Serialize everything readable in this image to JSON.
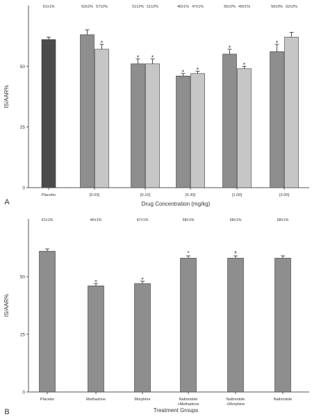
{
  "panels": [
    {
      "letter": "A",
      "xlabel": "Drug Concentration (mg/kg)",
      "ylabel": "IS/AAR%"
    },
    {
      "letter": "B",
      "xlabel": "Treatment Groups",
      "ylabel": "IS/AAR%"
    }
  ],
  "colors": {
    "placebo_dark": "#4b4b4b",
    "medium_grey": "#8e8e8e",
    "light_grey": "#c6c6c6",
    "axis": "#555555",
    "text": "#333333"
  },
  "chart_data": [
    {
      "type": "bar",
      "panel": "A",
      "xlabel": "Drug Concentration (mg/kg)",
      "ylabel": "IS/AAR%",
      "ylim": [
        0,
        75
      ],
      "yticks": [
        0,
        25,
        50
      ],
      "grid": false,
      "groups": [
        {
          "category": "Placebo",
          "bars": [
            {
              "value": 61,
              "error": 1,
              "color": "#4b4b4b",
              "label": "61±1%",
              "marker": ""
            }
          ]
        },
        {
          "category": "[0.03]",
          "bars": [
            {
              "value": 63,
              "error": 2,
              "color": "#8e8e8e",
              "label": "63±2%",
              "marker": ""
            },
            {
              "value": 57,
              "error": 2,
              "color": "#c6c6c6",
              "label": "57±2%",
              "marker": "*"
            }
          ]
        },
        {
          "category": "[0.10]",
          "bars": [
            {
              "value": 51,
              "error": 2,
              "color": "#8e8e8e",
              "label": "51±2%",
              "marker": "*"
            },
            {
              "value": 51,
              "error": 2,
              "color": "#c6c6c6",
              "label": "51±2%",
              "marker": "*"
            }
          ]
        },
        {
          "category": "[0.30]",
          "bars": [
            {
              "value": 46,
              "error": 1,
              "color": "#8e8e8e",
              "label": "46±1%",
              "marker": "*"
            },
            {
              "value": 47,
              "error": 1,
              "color": "#c6c6c6",
              "label": "47±1%",
              "marker": "*"
            }
          ]
        },
        {
          "category": "[1.00]",
          "bars": [
            {
              "value": 55,
              "error": 2,
              "color": "#8e8e8e",
              "label": "55±2%",
              "marker": "*"
            },
            {
              "value": 49,
              "error": 1,
              "color": "#c6c6c6",
              "label": "49±1%",
              "marker": "*"
            }
          ]
        },
        {
          "category": "[3.00]",
          "bars": [
            {
              "value": 56,
              "error": 3,
              "color": "#8e8e8e",
              "label": "56±3%",
              "marker": "*"
            },
            {
              "value": 62,
              "error": 2,
              "color": "#c6c6c6",
              "label": "62±2%",
              "marker": ""
            }
          ]
        }
      ]
    },
    {
      "type": "bar",
      "panel": "B",
      "xlabel": "Treatment Groups",
      "ylabel": "IS/AAR%",
      "ylim": [
        0,
        75
      ],
      "yticks": [
        0,
        25,
        50
      ],
      "grid": false,
      "groups": [
        {
          "category": [
            "Placebo"
          ],
          "bars": [
            {
              "value": 61,
              "error": 1,
              "color": "#8e8e8e",
              "label": "61±1%",
              "marker": ""
            }
          ]
        },
        {
          "category": [
            "Methadone"
          ],
          "bars": [
            {
              "value": 46,
              "error": 1,
              "color": "#8e8e8e",
              "label": "46±1%",
              "marker": "*"
            }
          ]
        },
        {
          "category": [
            "Morphine"
          ],
          "bars": [
            {
              "value": 47,
              "error": 1,
              "color": "#8e8e8e",
              "label": "47±1%",
              "marker": "*"
            }
          ]
        },
        {
          "category": [
            "Naltrindole",
            "+Methadone"
          ],
          "bars": [
            {
              "value": 58,
              "error": 1,
              "color": "#8e8e8e",
              "label": "58±1%",
              "marker": "+"
            }
          ]
        },
        {
          "category": [
            "Naltrindole",
            "+Morphine"
          ],
          "bars": [
            {
              "value": 58,
              "error": 1,
              "color": "#8e8e8e",
              "label": "58±1%",
              "marker": "x"
            }
          ]
        },
        {
          "category": [
            "Naltrindole"
          ],
          "bars": [
            {
              "value": 58,
              "error": 1,
              "color": "#8e8e8e",
              "label": "58±1%",
              "marker": ""
            }
          ]
        }
      ]
    }
  ]
}
